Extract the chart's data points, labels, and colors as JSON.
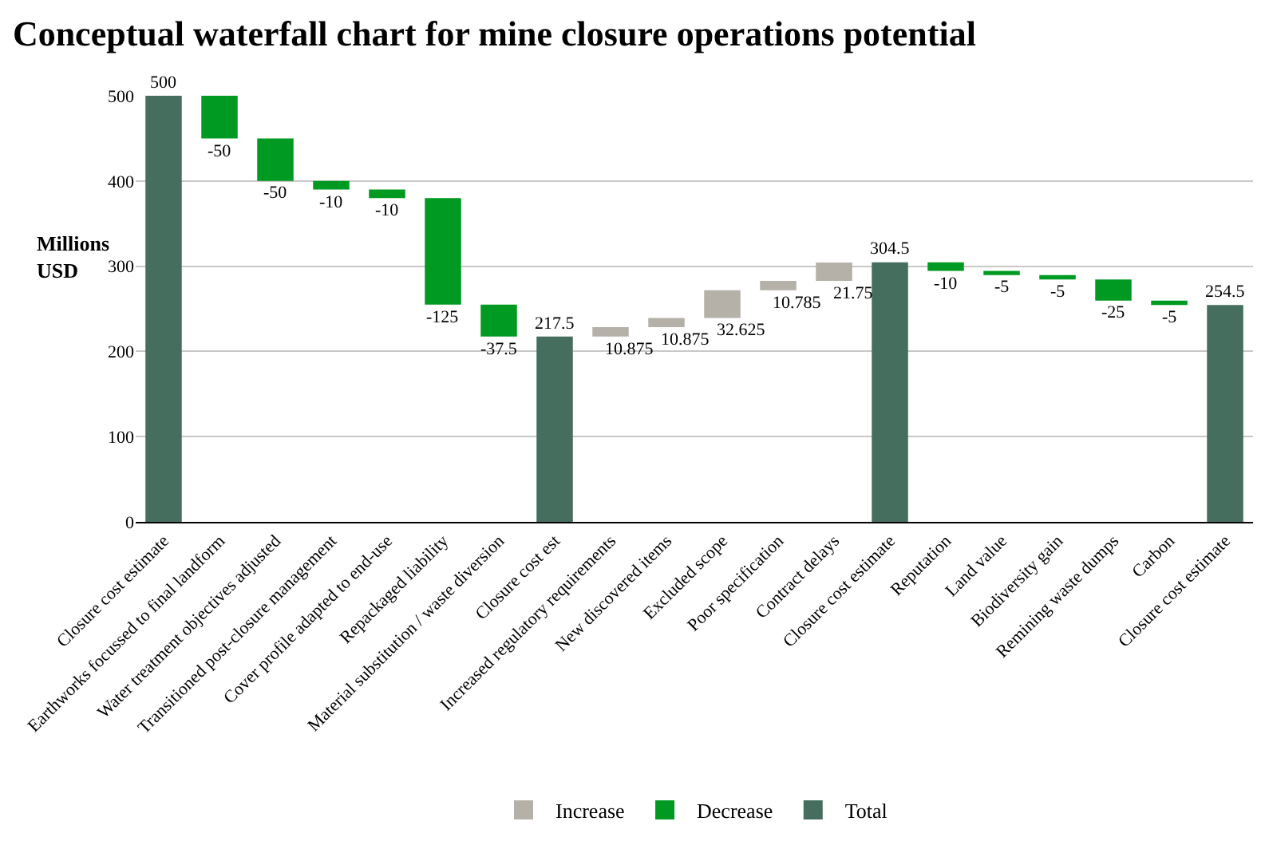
{
  "chart_data": {
    "type": "bar",
    "title": "Conceptual waterfall chart for mine closure operations potential",
    "ylabel": "Millions USD",
    "categories": [
      "Closure cost estimate",
      "Earthworks focussed to final landform",
      "Water treatment objectives adjusted",
      "Transitioned post-closure management",
      "Cover profile adapted to end-use",
      "Repackaged liability",
      "Material substitution / waste diversion",
      "Closure cost est",
      "Increased regulatory requirements",
      "New discovered items",
      "Excluded scope",
      "Poor specification",
      "Contract delays",
      "Closure cost estimate",
      "Reputation",
      "Land value",
      "Biodiversity gain",
      "Remining waste dumps",
      "Carbon",
      "Closure cost estimate"
    ],
    "series": [
      {
        "name": "Increase",
        "color": "#b5b1a9",
        "values": [
          null,
          null,
          null,
          null,
          null,
          null,
          null,
          null,
          10.875,
          10.875,
          32.625,
          10.785,
          21.75,
          null,
          null,
          null,
          null,
          null,
          null,
          null
        ],
        "base": [
          null,
          null,
          null,
          null,
          null,
          null,
          null,
          null,
          217.5,
          228.375,
          239.25,
          271.875,
          282.66,
          null,
          null,
          null,
          null,
          null,
          null,
          null
        ]
      },
      {
        "name": "Decrease",
        "color": "#009a22",
        "values": [
          null,
          -50,
          -50,
          -10,
          -10,
          -125,
          -37.5,
          null,
          null,
          null,
          null,
          null,
          null,
          null,
          -10,
          -5,
          -5,
          -25,
          -5,
          null
        ],
        "base": [
          null,
          500,
          450,
          400,
          390,
          380,
          255,
          null,
          null,
          null,
          null,
          null,
          null,
          null,
          304.5,
          294.5,
          289.5,
          284.5,
          259.5,
          null
        ]
      },
      {
        "name": "Total",
        "color": "#456e5e",
        "values": [
          500,
          null,
          null,
          null,
          null,
          null,
          null,
          217.5,
          null,
          null,
          null,
          null,
          null,
          304.5,
          null,
          null,
          null,
          null,
          null,
          254.5
        ],
        "base": [
          0,
          null,
          null,
          null,
          null,
          null,
          null,
          0,
          null,
          null,
          null,
          null,
          null,
          0,
          null,
          null,
          null,
          null,
          null,
          0
        ]
      }
    ],
    "ylim": [
      0,
      500
    ],
    "yticks": [
      0,
      100,
      200,
      300,
      400,
      500
    ],
    "grid": "y",
    "legend": "bottom",
    "data_labels": true
  }
}
